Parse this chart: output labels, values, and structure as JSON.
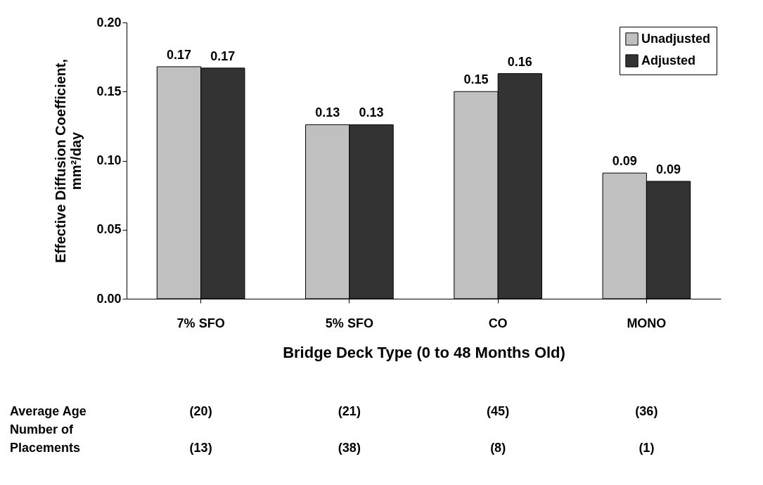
{
  "chart_data": {
    "type": "bar",
    "xlabel": "Bridge Deck Type (0 to 48 Months Old)",
    "ylabel": "Effective Diffusion Coefficient, mm²/day",
    "categories": [
      "7% SFO",
      "5% SFO",
      "CO",
      "MONO"
    ],
    "series": [
      {
        "name": "Unadjusted",
        "color": "#c0c0c0",
        "values": [
          0.168,
          0.126,
          0.15,
          0.091
        ],
        "value_labels": [
          "0.17",
          "0.13",
          "0.15",
          "0.09"
        ]
      },
      {
        "name": "Adjusted",
        "color": "#333333",
        "values": [
          0.167,
          0.126,
          0.163,
          0.085
        ],
        "value_labels": [
          "0.17",
          "0.13",
          "0.16",
          "0.09"
        ]
      }
    ],
    "ylim": [
      0,
      0.2
    ],
    "yticks": [
      {
        "value": 0,
        "label": "0.00"
      },
      {
        "value": 0.05,
        "label": "0.05"
      },
      {
        "value": 0.1,
        "label": "0.10"
      },
      {
        "value": 0.15,
        "label": "0.15"
      },
      {
        "value": 0.2,
        "label": "0.20"
      }
    ],
    "grid": false,
    "legend": "top right",
    "annotations": [
      "Average Age",
      "(20)",
      "(21)",
      "(45)",
      "(36)",
      "Number of Placements",
      "(13)",
      "(38)",
      "(8)",
      "(1)"
    ]
  }
}
